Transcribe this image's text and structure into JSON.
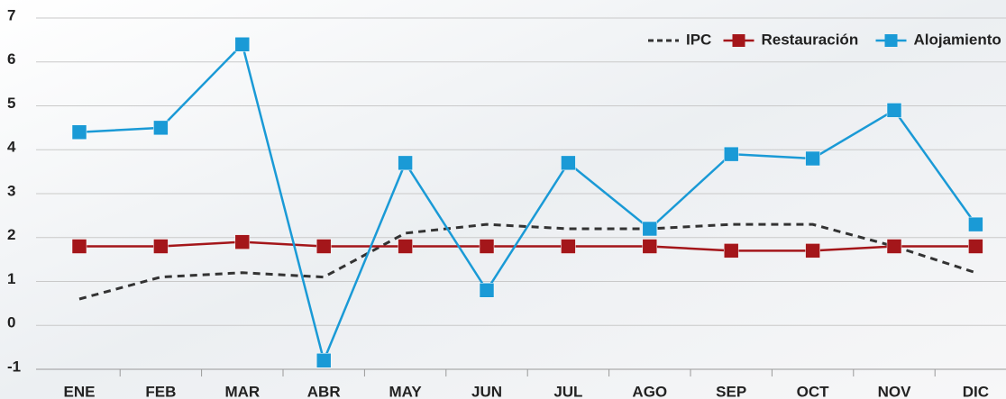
{
  "chart_data": {
    "type": "line",
    "categories": [
      "ENE",
      "FEB",
      "MAR",
      "ABR",
      "MAY",
      "JUN",
      "JUL",
      "AGO",
      "SEP",
      "OCT",
      "NOV",
      "DIC"
    ],
    "series": [
      {
        "name": "IPC",
        "color": "#333333",
        "dashed": true,
        "markers": false,
        "values": [
          0.6,
          1.1,
          1.2,
          1.1,
          2.1,
          2.3,
          2.2,
          2.2,
          2.3,
          2.3,
          1.8,
          1.2
        ]
      },
      {
        "name": "Restauración",
        "color": "#a4161a",
        "dashed": false,
        "markers": true,
        "values": [
          1.8,
          1.8,
          1.9,
          1.8,
          1.8,
          1.8,
          1.8,
          1.8,
          1.7,
          1.7,
          1.8,
          1.8
        ]
      },
      {
        "name": "Alojamiento",
        "color": "#1a9ad6",
        "dashed": false,
        "markers": true,
        "values": [
          4.4,
          4.5,
          6.4,
          -0.8,
          3.7,
          0.8,
          3.7,
          2.2,
          3.9,
          3.8,
          4.9,
          2.3
        ]
      }
    ],
    "ylim": [
      -1,
      7
    ],
    "yticks": [
      -1,
      0,
      1,
      2,
      3,
      4,
      5,
      6,
      7
    ],
    "grid": true,
    "legend": "top-right"
  }
}
